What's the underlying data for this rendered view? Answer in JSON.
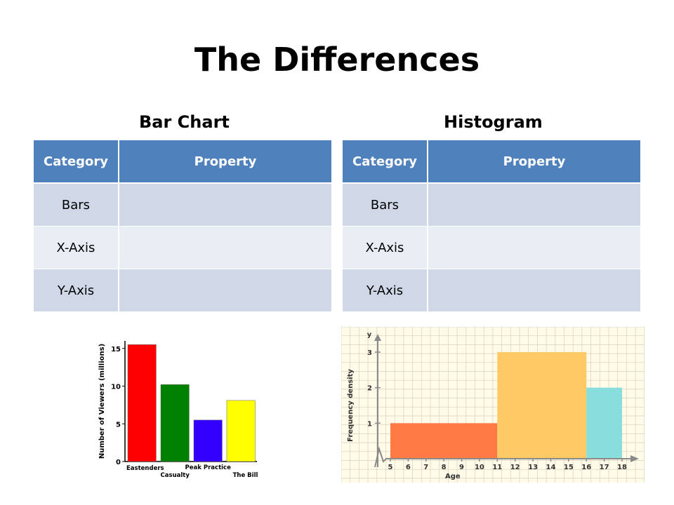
{
  "slide": {
    "title": "The Differences",
    "left_heading": "Bar Chart",
    "right_heading": "Histogram"
  },
  "tables": [
    {
      "headers": [
        "Category",
        "Property"
      ],
      "rows": [
        [
          "Bars",
          ""
        ],
        [
          "X-Axis",
          ""
        ],
        [
          "Y-Axis",
          ""
        ]
      ]
    },
    {
      "headers": [
        "Category",
        "Property"
      ],
      "rows": [
        [
          "Bars",
          ""
        ],
        [
          "X-Axis",
          ""
        ],
        [
          "Y-Axis",
          ""
        ]
      ]
    }
  ],
  "colors": {
    "header_fill": "#4f81bd",
    "row_odd": "#d0d8e8",
    "row_even": "#e9edf4"
  },
  "chart_data": [
    {
      "type": "bar",
      "categories": [
        "Eastenders",
        "Casualty",
        "Peak Practice",
        "The Bill"
      ],
      "values": [
        15.5,
        10.2,
        5.5,
        8.1
      ],
      "colors": [
        "#ff0000",
        "#008000",
        "#3300ff",
        "#ffff00"
      ],
      "ylabel": "Number of Viewers (millions)",
      "yticks": [
        0,
        5,
        10,
        15
      ],
      "ylim": [
        0,
        16
      ],
      "grid": false
    },
    {
      "type": "bar",
      "subtype": "histogram",
      "bins": [
        {
          "from": 5,
          "to": 11,
          "density": 1,
          "color": "#ff7a45"
        },
        {
          "from": 11,
          "to": 16,
          "density": 3,
          "color": "#ffc966"
        },
        {
          "from": 16,
          "to": 18,
          "density": 2,
          "color": "#88dddd"
        }
      ],
      "xticks": [
        5,
        6,
        7,
        8,
        9,
        10,
        11,
        12,
        13,
        14,
        15,
        16,
        17,
        18
      ],
      "yticks": [
        1,
        2,
        3
      ],
      "xlabel": "Age",
      "ylabel": "Frequency density",
      "y_axis_name": "y",
      "xlim": [
        5,
        18
      ],
      "ylim": [
        0,
        3
      ],
      "grid": true
    }
  ]
}
